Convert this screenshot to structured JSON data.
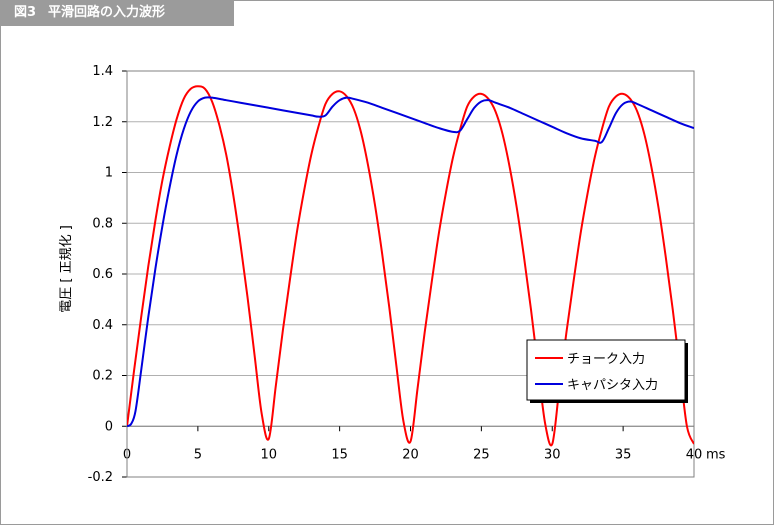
{
  "figure": {
    "number": "図3",
    "caption": "平滑回路の入力波形"
  },
  "chart_data": {
    "type": "line",
    "title": "",
    "xlabel": "",
    "x_unit": "ms",
    "ylabel": "電圧 [ 正規化 ]",
    "xlim": [
      0,
      40
    ],
    "ylim": [
      -0.2,
      1.4
    ],
    "xticks": [
      "0",
      "5",
      "10",
      "15",
      "20",
      "25",
      "30",
      "35",
      "40"
    ],
    "yticks": [
      "-0.2",
      "0",
      "0.2",
      "0.4",
      "0.6",
      "0.8",
      "1",
      "1.2",
      "1.4"
    ],
    "grid": "horizontal",
    "legend_position": "bottom-right",
    "series": [
      {
        "name": "チョーク入力",
        "color": "#ff0000",
        "x": [
          0,
          0.5,
          1,
          1.5,
          2,
          2.5,
          3,
          3.5,
          4,
          4.5,
          5,
          5.5,
          6,
          6.5,
          7,
          7.5,
          8,
          8.5,
          9,
          9.5,
          10,
          10.5,
          11,
          11.5,
          12,
          12.5,
          13,
          13.5,
          14,
          14.5,
          15,
          15.5,
          16,
          16.5,
          17,
          17.5,
          18,
          18.5,
          19,
          19.5,
          20,
          20.5,
          21,
          21.5,
          22,
          22.5,
          23,
          23.5,
          24,
          24.5,
          25,
          25.5,
          26,
          26.5,
          27,
          27.5,
          28,
          28.5,
          29,
          29.5,
          30,
          30.5,
          31,
          31.5,
          32,
          32.5,
          33,
          33.5,
          34,
          34.5,
          35,
          35.5,
          36,
          36.5,
          37,
          37.5,
          38,
          38.5,
          39,
          39.5,
          40
        ],
        "y": [
          0,
          0.22,
          0.43,
          0.63,
          0.81,
          0.97,
          1.1,
          1.21,
          1.29,
          1.33,
          1.34,
          1.33,
          1.28,
          1.19,
          1.07,
          0.91,
          0.72,
          0.51,
          0.28,
          0.05,
          -0.05,
          0.16,
          0.38,
          0.58,
          0.77,
          0.93,
          1.07,
          1.18,
          1.27,
          1.31,
          1.32,
          1.3,
          1.25,
          1.16,
          1.03,
          0.87,
          0.68,
          0.47,
          0.24,
          0.02,
          -0.06,
          0.15,
          0.37,
          0.57,
          0.76,
          0.92,
          1.06,
          1.17,
          1.26,
          1.3,
          1.31,
          1.29,
          1.24,
          1.15,
          1.02,
          0.86,
          0.67,
          0.46,
          0.23,
          0.01,
          -0.07,
          0.15,
          0.37,
          0.57,
          0.76,
          0.92,
          1.06,
          1.17,
          1.26,
          1.3,
          1.31,
          1.29,
          1.24,
          1.15,
          1.02,
          0.86,
          0.67,
          0.46,
          0.23,
          0.0,
          -0.07
        ]
      },
      {
        "name": "キャパシタ入力",
        "color": "#0000dd",
        "x": [
          0,
          0.3,
          0.6,
          1,
          1.5,
          2,
          2.5,
          3,
          3.5,
          4,
          4.5,
          5,
          5.5,
          6,
          7,
          8,
          9,
          10,
          11,
          12,
          13,
          13.5,
          14,
          14.5,
          15,
          15.5,
          16,
          17,
          18,
          19,
          20,
          21,
          22,
          23,
          23.5,
          24,
          24.5,
          25,
          25.5,
          26,
          27,
          28,
          29,
          30,
          31,
          32,
          33,
          33.5,
          34,
          34.5,
          35,
          35.5,
          36,
          37,
          38,
          39,
          40
        ],
        "y": [
          0,
          0.01,
          0.06,
          0.22,
          0.43,
          0.62,
          0.79,
          0.94,
          1.07,
          1.17,
          1.24,
          1.28,
          1.295,
          1.295,
          1.285,
          1.275,
          1.265,
          1.255,
          1.245,
          1.235,
          1.225,
          1.22,
          1.225,
          1.26,
          1.285,
          1.295,
          1.29,
          1.275,
          1.255,
          1.235,
          1.215,
          1.195,
          1.175,
          1.16,
          1.165,
          1.21,
          1.255,
          1.28,
          1.285,
          1.275,
          1.255,
          1.23,
          1.205,
          1.18,
          1.155,
          1.135,
          1.125,
          1.12,
          1.175,
          1.235,
          1.27,
          1.28,
          1.27,
          1.245,
          1.22,
          1.195,
          1.175
        ]
      }
    ]
  }
}
